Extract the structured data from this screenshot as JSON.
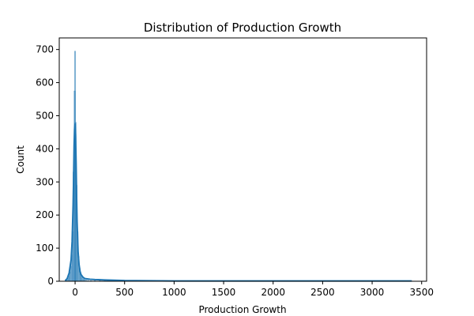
{
  "chart_data": {
    "type": "histogram",
    "title": "Distribution of Production Growth",
    "xlabel": "Production Growth",
    "ylabel": "Count",
    "xlim": [
      -100,
      3400
    ],
    "ylim": [
      0,
      700
    ],
    "x_ticks": [
      0,
      500,
      1000,
      1500,
      2000,
      2500,
      3000,
      3500
    ],
    "y_ticks": [
      0,
      100,
      200,
      300,
      400,
      500,
      600,
      700
    ],
    "grid": false,
    "legend": "none",
    "bar_color": "#1f77b4",
    "bars": [
      {
        "x": -95,
        "count": 2
      },
      {
        "x": -85,
        "count": 4
      },
      {
        "x": -75,
        "count": 8
      },
      {
        "x": -65,
        "count": 15
      },
      {
        "x": -55,
        "count": 28
      },
      {
        "x": -45,
        "count": 45
      },
      {
        "x": -35,
        "count": 80
      },
      {
        "x": -25,
        "count": 150
      },
      {
        "x": -15,
        "count": 330
      },
      {
        "x": -5,
        "count": 575
      },
      {
        "x": 0,
        "count": 695
      },
      {
        "x": 5,
        "count": 480
      },
      {
        "x": 15,
        "count": 290
      },
      {
        "x": 25,
        "count": 150
      },
      {
        "x": 35,
        "count": 75
      },
      {
        "x": 45,
        "count": 40
      },
      {
        "x": 55,
        "count": 24
      },
      {
        "x": 65,
        "count": 15
      },
      {
        "x": 75,
        "count": 10
      },
      {
        "x": 85,
        "count": 7
      },
      {
        "x": 95,
        "count": 5
      },
      {
        "x": 110,
        "count": 4
      },
      {
        "x": 130,
        "count": 3
      },
      {
        "x": 160,
        "count": 2
      },
      {
        "x": 200,
        "count": 2
      },
      {
        "x": 250,
        "count": 2
      },
      {
        "x": 300,
        "count": 2
      },
      {
        "x": 350,
        "count": 1
      },
      {
        "x": 400,
        "count": 1
      },
      {
        "x": 500,
        "count": 1
      },
      {
        "x": 700,
        "count": 1
      },
      {
        "x": 1000,
        "count": 1
      },
      {
        "x": 1500,
        "count": 1
      },
      {
        "x": 2000,
        "count": 1
      },
      {
        "x": 2500,
        "count": 1
      },
      {
        "x": 3000,
        "count": 1
      },
      {
        "x": 3400,
        "count": 1
      }
    ],
    "kde": {
      "x": [
        -100,
        -80,
        -60,
        -40,
        -30,
        -20,
        -15,
        -10,
        -5,
        0,
        5,
        10,
        15,
        20,
        30,
        40,
        50,
        60,
        80,
        100,
        150,
        200,
        300,
        500,
        1000,
        1500,
        2000,
        2500,
        3000,
        3400
      ],
      "y": [
        2,
        8,
        25,
        65,
        120,
        230,
        310,
        410,
        460,
        475,
        440,
        360,
        260,
        180,
        90,
        50,
        30,
        20,
        12,
        8,
        6,
        5,
        4,
        2,
        1,
        1,
        1,
        1,
        1,
        1
      ]
    }
  }
}
